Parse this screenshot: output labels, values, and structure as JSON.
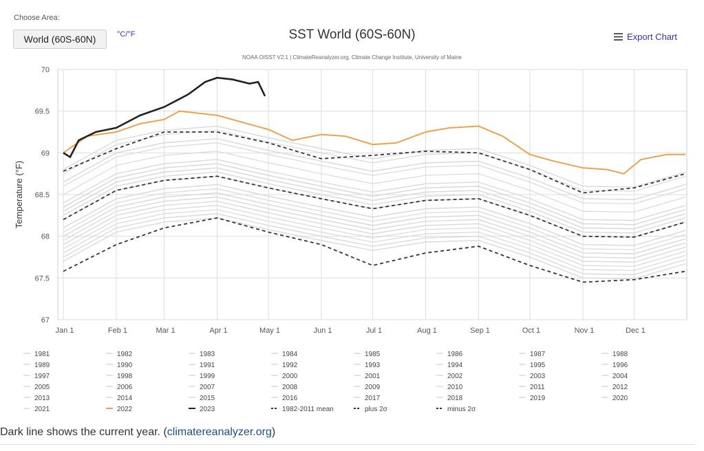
{
  "controls": {
    "choose_area_label": "Choose Area:",
    "area_value": "World (60S-60N)",
    "units_toggle": "°C/°F",
    "export_label": "Export Chart",
    "export_icon": "menu-icon"
  },
  "caption": {
    "text": "Dark line shows the current year. (",
    "link": "climatereanalyzer.org",
    "close": ")"
  },
  "chart_data": {
    "type": "line",
    "title": "SST World (60S-60N)",
    "subtitle": "NOAA OISST V2.1 | ClimateReanalyzer.org, Climate Change Institute, University of Maine",
    "ylabel": "Temperature (°F)",
    "ylim": [
      67,
      70
    ],
    "yticks": [
      "67",
      "67.5",
      "68",
      "68.5",
      "69",
      "69.5",
      "70"
    ],
    "xticks": [
      "Jan 1",
      "Feb 1",
      "Mar 1",
      "Apr 1",
      "May 1",
      "Jun 1",
      "Jul 1",
      "Aug 1",
      "Sep 1",
      "Oct 1",
      "Nov 1",
      "Dec 1"
    ],
    "grid": true,
    "legend_placement": "bottom",
    "colors": {
      "past_years": "#d9d9d9",
      "2022": "#f0a04b",
      "2023": "#222222",
      "stats": "#333333"
    },
    "past_years_x": [
      "Jan 1",
      "Feb 1",
      "Mar 1",
      "Apr 1",
      "May 1",
      "Jun 1",
      "Jul 1",
      "Aug 1",
      "Sep 1",
      "Oct 1",
      "Nov 1",
      "Dec 1",
      "Dec 31"
    ],
    "past_years": [
      {
        "name": "1981",
        "values": [
          67.7,
          68.05,
          68.17,
          68.22,
          68.08,
          67.95,
          67.83,
          67.93,
          67.95,
          67.75,
          67.5,
          67.49,
          67.67
        ]
      },
      {
        "name": "1982",
        "values": [
          67.75,
          68.1,
          68.22,
          68.27,
          68.13,
          68.0,
          67.88,
          67.98,
          68.0,
          67.8,
          67.55,
          67.54,
          67.72
        ]
      },
      {
        "name": "1983",
        "values": [
          67.9,
          68.25,
          68.37,
          68.42,
          68.28,
          68.15,
          68.03,
          68.13,
          68.15,
          67.95,
          67.7,
          67.69,
          67.87
        ]
      },
      {
        "name": "1984",
        "values": [
          67.75,
          68.1,
          68.22,
          68.27,
          68.13,
          68.0,
          67.88,
          67.98,
          68.0,
          67.8,
          67.55,
          67.54,
          67.72
        ]
      },
      {
        "name": "1985",
        "values": [
          67.7,
          68.05,
          68.17,
          68.22,
          68.08,
          67.95,
          67.83,
          67.93,
          67.95,
          67.75,
          67.5,
          67.49,
          67.67
        ]
      },
      {
        "name": "1986",
        "values": [
          67.8,
          68.15,
          68.27,
          68.32,
          68.18,
          68.05,
          67.93,
          68.03,
          68.05,
          67.85,
          67.6,
          67.59,
          67.77
        ]
      },
      {
        "name": "1987",
        "values": [
          68.0,
          68.35,
          68.47,
          68.52,
          68.38,
          68.25,
          68.13,
          68.23,
          68.25,
          68.05,
          67.8,
          67.79,
          67.97
        ]
      },
      {
        "name": "1988",
        "values": [
          67.95,
          68.3,
          68.42,
          68.47,
          68.33,
          68.2,
          68.08,
          68.18,
          68.2,
          68.0,
          67.75,
          67.74,
          67.92
        ]
      },
      {
        "name": "1989",
        "values": [
          67.85,
          68.2,
          68.32,
          68.37,
          68.23,
          68.1,
          67.98,
          68.08,
          68.1,
          67.9,
          67.65,
          67.64,
          67.82
        ]
      },
      {
        "name": "1990",
        "values": [
          68.0,
          68.35,
          68.47,
          68.52,
          68.38,
          68.25,
          68.13,
          68.23,
          68.25,
          68.05,
          67.8,
          67.79,
          67.97
        ]
      },
      {
        "name": "1991",
        "values": [
          68.0,
          68.35,
          68.47,
          68.52,
          68.38,
          68.25,
          68.13,
          68.23,
          68.25,
          68.05,
          67.8,
          67.79,
          67.97
        ]
      },
      {
        "name": "1992",
        "values": [
          67.9,
          68.25,
          68.37,
          68.42,
          68.28,
          68.15,
          68.03,
          68.13,
          68.15,
          67.95,
          67.7,
          67.69,
          67.87
        ]
      },
      {
        "name": "1993",
        "values": [
          67.95,
          68.3,
          68.42,
          68.47,
          68.33,
          68.2,
          68.08,
          68.18,
          68.2,
          68.0,
          67.75,
          67.74,
          67.92
        ]
      },
      {
        "name": "1994",
        "values": [
          68.0,
          68.35,
          68.47,
          68.52,
          68.38,
          68.25,
          68.13,
          68.23,
          68.25,
          68.05,
          67.8,
          67.79,
          67.97
        ]
      },
      {
        "name": "1995",
        "values": [
          68.1,
          68.45,
          68.57,
          68.62,
          68.48,
          68.35,
          68.23,
          68.33,
          68.35,
          68.15,
          67.9,
          67.89,
          68.07
        ]
      },
      {
        "name": "1996",
        "values": [
          68.05,
          68.4,
          68.52,
          68.57,
          68.43,
          68.3,
          68.18,
          68.28,
          68.3,
          68.1,
          67.85,
          67.84,
          68.02
        ]
      },
      {
        "name": "1997",
        "values": [
          68.25,
          68.6,
          68.72,
          68.77,
          68.63,
          68.5,
          68.38,
          68.48,
          68.5,
          68.3,
          68.05,
          68.04,
          68.22
        ]
      },
      {
        "name": "1998",
        "values": [
          68.35,
          68.7,
          68.82,
          68.87,
          68.73,
          68.6,
          68.48,
          68.58,
          68.6,
          68.4,
          68.15,
          68.14,
          68.32
        ]
      },
      {
        "name": "1999",
        "values": [
          68.1,
          68.45,
          68.57,
          68.62,
          68.48,
          68.35,
          68.23,
          68.33,
          68.35,
          68.15,
          67.9,
          67.89,
          68.07
        ]
      },
      {
        "name": "2000",
        "values": [
          68.1,
          68.45,
          68.57,
          68.62,
          68.48,
          68.35,
          68.23,
          68.33,
          68.35,
          68.15,
          67.9,
          67.89,
          68.07
        ]
      },
      {
        "name": "2001",
        "values": [
          68.2,
          68.55,
          68.67,
          68.72,
          68.58,
          68.45,
          68.33,
          68.43,
          68.45,
          68.25,
          68.0,
          67.99,
          68.17
        ]
      },
      {
        "name": "2002",
        "values": [
          68.3,
          68.65,
          68.77,
          68.82,
          68.68,
          68.55,
          68.43,
          68.53,
          68.55,
          68.35,
          68.1,
          68.09,
          68.27
        ]
      },
      {
        "name": "2003",
        "values": [
          68.3,
          68.65,
          68.77,
          68.82,
          68.68,
          68.55,
          68.43,
          68.53,
          68.55,
          68.35,
          68.1,
          68.09,
          68.27
        ]
      },
      {
        "name": "2004",
        "values": [
          68.3,
          68.65,
          68.77,
          68.82,
          68.68,
          68.55,
          68.43,
          68.53,
          68.55,
          68.35,
          68.1,
          68.09,
          68.27
        ]
      },
      {
        "name": "2005",
        "values": [
          68.35,
          68.7,
          68.82,
          68.87,
          68.73,
          68.6,
          68.48,
          68.58,
          68.6,
          68.4,
          68.15,
          68.14,
          68.32
        ]
      },
      {
        "name": "2006",
        "values": [
          68.3,
          68.65,
          68.77,
          68.82,
          68.68,
          68.55,
          68.43,
          68.53,
          68.55,
          68.35,
          68.1,
          68.09,
          68.27
        ]
      },
      {
        "name": "2007",
        "values": [
          68.2,
          68.55,
          68.67,
          68.72,
          68.58,
          68.45,
          68.33,
          68.43,
          68.45,
          68.25,
          68.0,
          67.99,
          68.17
        ]
      },
      {
        "name": "2008",
        "values": [
          68.2,
          68.55,
          68.67,
          68.72,
          68.58,
          68.45,
          68.33,
          68.43,
          68.45,
          68.25,
          68.0,
          67.99,
          68.17
        ]
      },
      {
        "name": "2009",
        "values": [
          68.35,
          68.7,
          68.82,
          68.87,
          68.73,
          68.6,
          68.48,
          68.58,
          68.6,
          68.4,
          68.15,
          68.14,
          68.32
        ]
      },
      {
        "name": "2010",
        "values": [
          68.4,
          68.75,
          68.87,
          68.92,
          68.78,
          68.65,
          68.53,
          68.63,
          68.65,
          68.45,
          68.2,
          68.19,
          68.37
        ]
      },
      {
        "name": "2011",
        "values": [
          68.25,
          68.6,
          68.72,
          68.77,
          68.63,
          68.5,
          68.38,
          68.48,
          68.5,
          68.3,
          68.05,
          68.04,
          68.22
        ]
      },
      {
        "name": "2012",
        "values": [
          68.35,
          68.7,
          68.82,
          68.87,
          68.73,
          68.6,
          68.48,
          68.58,
          68.6,
          68.4,
          68.15,
          68.14,
          68.32
        ]
      },
      {
        "name": "2013",
        "values": [
          68.4,
          68.75,
          68.87,
          68.92,
          68.78,
          68.65,
          68.53,
          68.63,
          68.65,
          68.45,
          68.2,
          68.19,
          68.37
        ]
      },
      {
        "name": "2014",
        "values": [
          68.5,
          68.85,
          68.97,
          69.02,
          68.88,
          68.75,
          68.63,
          68.73,
          68.75,
          68.55,
          68.3,
          68.29,
          68.47
        ]
      },
      {
        "name": "2015",
        "values": [
          68.65,
          69.0,
          69.12,
          69.17,
          69.03,
          68.9,
          68.78,
          68.88,
          68.9,
          68.7,
          68.45,
          68.44,
          68.62
        ]
      },
      {
        "name": "2016",
        "values": [
          68.8,
          69.15,
          69.27,
          69.32,
          69.18,
          69.05,
          68.93,
          69.03,
          69.05,
          68.85,
          68.6,
          68.59,
          68.77
        ]
      },
      {
        "name": "2017",
        "values": [
          68.65,
          69.0,
          69.12,
          69.17,
          69.03,
          68.9,
          68.78,
          68.88,
          68.9,
          68.7,
          68.45,
          68.44,
          68.62
        ]
      },
      {
        "name": "2018",
        "values": [
          68.6,
          68.95,
          69.07,
          69.12,
          68.98,
          68.85,
          68.73,
          68.83,
          68.85,
          68.65,
          68.4,
          68.39,
          68.57
        ]
      },
      {
        "name": "2019",
        "values": [
          68.75,
          69.1,
          69.22,
          69.27,
          69.13,
          69.0,
          68.88,
          68.98,
          69.0,
          68.8,
          68.55,
          68.54,
          68.72
        ]
      },
      {
        "name": "2020",
        "values": [
          68.8,
          69.15,
          69.27,
          69.32,
          69.18,
          69.05,
          68.93,
          69.03,
          69.05,
          68.85,
          68.6,
          68.59,
          68.77
        ]
      },
      {
        "name": "2021",
        "values": [
          68.65,
          69.0,
          69.12,
          69.17,
          69.03,
          68.9,
          68.78,
          68.88,
          68.9,
          68.7,
          68.45,
          68.44,
          68.62
        ]
      }
    ],
    "series": [
      {
        "name": "1982-2011 mean",
        "style": "dash",
        "x": [
          "Jan 1",
          "Feb 1",
          "Mar 1",
          "Apr 1",
          "May 1",
          "Jun 1",
          "Jul 1",
          "Aug 1",
          "Sep 1",
          "Oct 1",
          "Nov 1",
          "Dec 1",
          "Dec 31"
        ],
        "values": [
          68.2,
          68.55,
          68.67,
          68.72,
          68.58,
          68.45,
          68.33,
          68.43,
          68.45,
          68.25,
          68.0,
          67.99,
          68.17
        ]
      },
      {
        "name": "plus 2σ",
        "style": "dash",
        "x": [
          "Jan 1",
          "Feb 1",
          "Mar 1",
          "Apr 1",
          "May 1",
          "Jun 1",
          "Jul 1",
          "Aug 1",
          "Sep 1",
          "Oct 1",
          "Nov 1",
          "Dec 1",
          "Dec 31"
        ],
        "values": [
          68.78,
          69.05,
          69.25,
          69.25,
          69.12,
          68.93,
          68.97,
          69.02,
          69.0,
          68.8,
          68.52,
          68.58,
          68.75
        ]
      },
      {
        "name": "minus 2σ",
        "style": "dash",
        "x": [
          "Jan 1",
          "Feb 1",
          "Mar 1",
          "Apr 1",
          "May 1",
          "Jun 1",
          "Jul 1",
          "Aug 1",
          "Sep 1",
          "Oct 1",
          "Nov 1",
          "Dec 1",
          "Dec 31"
        ],
        "values": [
          67.58,
          67.9,
          68.1,
          68.22,
          68.05,
          67.9,
          67.65,
          67.8,
          67.88,
          67.65,
          67.45,
          67.48,
          67.58
        ]
      },
      {
        "name": "2022",
        "style": "solid",
        "x": [
          "Jan 1",
          "Jan 15",
          "Feb 1",
          "Feb 15",
          "Mar 1",
          "Mar 10",
          "Apr 1",
          "May 1",
          "May 15",
          "Jun 1",
          "Jun 15",
          "Jul 1",
          "Jul 15",
          "Aug 1",
          "Aug 15",
          "Sep 1",
          "Sep 15",
          "Oct 1",
          "Oct 15",
          "Nov 1",
          "Nov 15",
          "Nov 25",
          "Dec 5",
          "Dec 20",
          "Dec 31"
        ],
        "values": [
          69.0,
          69.2,
          69.25,
          69.35,
          69.4,
          69.5,
          69.45,
          69.28,
          69.15,
          69.22,
          69.2,
          69.1,
          69.12,
          69.25,
          69.3,
          69.32,
          69.2,
          68.98,
          68.9,
          68.82,
          68.8,
          68.75,
          68.92,
          68.98,
          68.98
        ]
      },
      {
        "name": "2023",
        "style": "solid",
        "x": [
          "Jan 1",
          "Jan 5",
          "Jan 10",
          "Jan 20",
          "Feb 1",
          "Feb 15",
          "Mar 1",
          "Mar 15",
          "Mar 25",
          "Apr 1",
          "Apr 10",
          "Apr 20",
          "Apr 25",
          "Apr 29"
        ],
        "values": [
          69.0,
          68.95,
          69.15,
          69.25,
          69.3,
          69.45,
          69.55,
          69.7,
          69.85,
          69.9,
          69.88,
          69.83,
          69.85,
          69.68
        ]
      }
    ]
  }
}
